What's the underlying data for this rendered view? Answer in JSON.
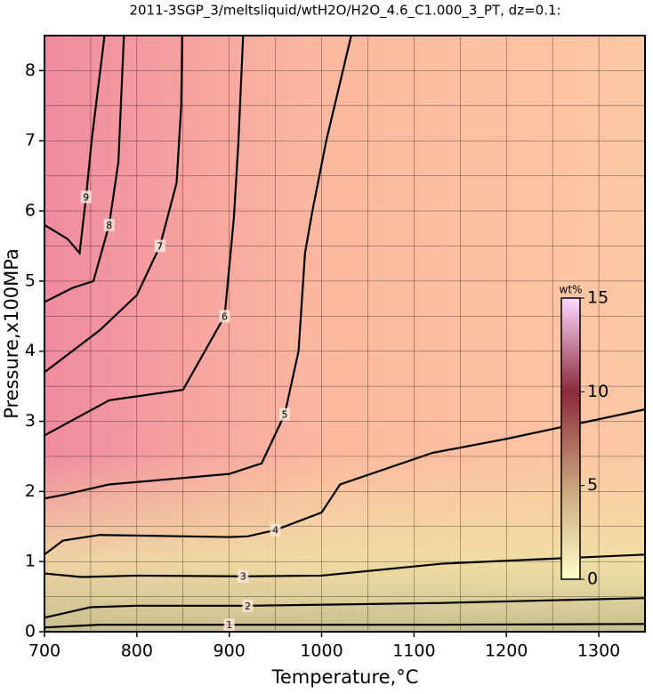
{
  "chart_data": {
    "type": "contour",
    "title": "2011-3SGP_3/meltsliquid/wtH2O/H2O_4.6_C1.000_3_PT, dz=0.1:",
    "x_label": "Temperature,°C",
    "y_label": "Pressure,x100MPa",
    "xlim": [
      700,
      1350
    ],
    "xticks": [
      700,
      800,
      900,
      1000,
      1100,
      1200,
      1300
    ],
    "ylim": [
      0,
      8.5
    ],
    "yticks": [
      0,
      1,
      2,
      3,
      4,
      5,
      6,
      7,
      8
    ],
    "xgrid": [
      750,
      800,
      850,
      900,
      950,
      1000,
      1050,
      1100,
      1150,
      1200,
      1250,
      1300
    ],
    "ygrid": [
      0.5,
      1,
      1.5,
      2,
      2.5,
      3,
      3.5,
      4,
      4.5,
      5,
      5.5,
      6,
      6.5,
      7,
      7.5,
      8
    ],
    "line_color": "#000000",
    "contours": [
      {
        "level": 1,
        "x": [
          700,
          760,
          900,
          1130,
          1350
        ],
        "y": [
          0.06,
          0.1,
          0.1,
          0.1,
          0.11
        ]
      },
      {
        "level": 2,
        "x": [
          700,
          750,
          800,
          920,
          1130,
          1350
        ],
        "y": [
          0.2,
          0.35,
          0.37,
          0.37,
          0.41,
          0.48
        ]
      },
      {
        "level": 3,
        "x": [
          700,
          740,
          800,
          915,
          1000,
          1130,
          1350
        ],
        "y": [
          0.83,
          0.78,
          0.8,
          0.79,
          0.8,
          0.97,
          1.1
        ]
      },
      {
        "level": 4,
        "x": [
          700,
          720,
          760,
          900,
          920,
          950,
          1000,
          1020,
          1120,
          1200,
          1350
        ],
        "y": [
          1.1,
          1.3,
          1.38,
          1.35,
          1.36,
          1.45,
          1.7,
          2.1,
          2.55,
          2.75,
          3.17
        ]
      },
      {
        "level": 5,
        "x": [
          700,
          720,
          770,
          900,
          935,
          960,
          975,
          982,
          990,
          1005,
          1032
        ],
        "y": [
          1.9,
          1.95,
          2.1,
          2.25,
          2.4,
          3.1,
          4,
          5.4,
          6,
          7,
          8.5
        ]
      },
      {
        "level": 6,
        "x": [
          700,
          770,
          850,
          895,
          905,
          910,
          915
        ],
        "y": [
          2.8,
          3.3,
          3.45,
          4.5,
          5.9,
          7,
          8.5
        ]
      },
      {
        "level": 7,
        "x": [
          700,
          760,
          800,
          825,
          843,
          848,
          849
        ],
        "y": [
          3.7,
          4.3,
          4.8,
          5.5,
          6.4,
          7.5,
          8.5
        ]
      },
      {
        "level": 8,
        "x": [
          700,
          730,
          753,
          770,
          780,
          786
        ],
        "y": [
          4.7,
          4.9,
          5,
          5.8,
          6.7,
          8.5
        ]
      },
      {
        "level": 9,
        "x": [
          700,
          725,
          738,
          745,
          751,
          765
        ],
        "y": [
          5.8,
          5.6,
          5.4,
          6.2,
          7,
          8.5
        ]
      }
    ],
    "colorbar": {
      "label": "wt%",
      "clim": [
        0,
        15
      ],
      "ticks": [
        0,
        5,
        10,
        15
      ],
      "colormap": [
        {
          "value": 0,
          "color": "#ffffc8"
        },
        {
          "value": 5,
          "color": "#c8a27c"
        },
        {
          "value": 10,
          "color": "#8a2a3a"
        },
        {
          "value": 15,
          "color": "#ffd8ff"
        }
      ]
    }
  }
}
